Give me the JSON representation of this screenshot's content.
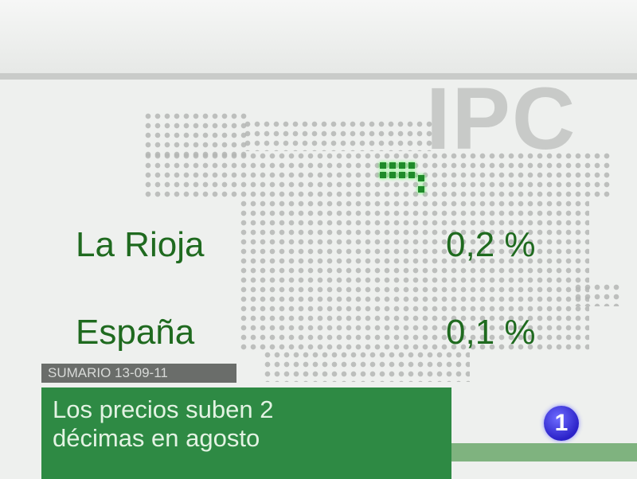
{
  "graphic": {
    "watermark": "IPC",
    "highlight_color": "#1f8a2a"
  },
  "rows": [
    {
      "region": "La Rioja",
      "value": "0,2 %"
    },
    {
      "region": "España",
      "value": "0,1 %"
    }
  ],
  "lower_third": {
    "section": "SUMARIO 13-09-11",
    "headline_line1": "Los precios suben 2",
    "headline_line2": "décimas en agosto"
  },
  "channel_logo": {
    "text": "1",
    "color": "#2b22c8"
  }
}
